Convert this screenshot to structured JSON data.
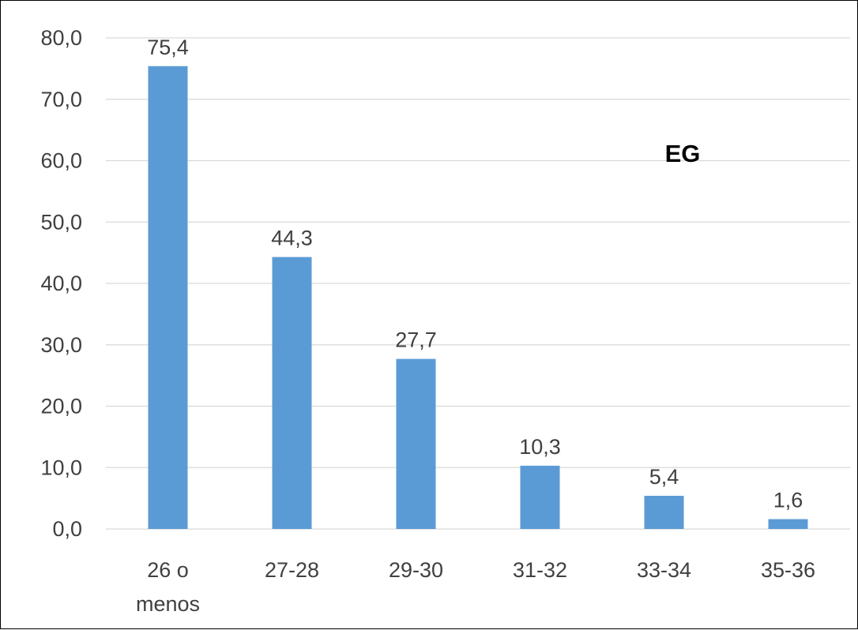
{
  "chart_data": {
    "type": "bar",
    "categories": [
      [
        "26 o",
        "menos"
      ],
      [
        "27-28"
      ],
      [
        "29-30"
      ],
      [
        "31-32"
      ],
      [
        "33-34"
      ],
      [
        "35-36"
      ]
    ],
    "values": [
      75.4,
      44.3,
      27.7,
      10.3,
      5.4,
      1.6
    ],
    "data_labels": [
      "75,4",
      "44,3",
      "27,7",
      "10,3",
      "5,4",
      "1,6"
    ],
    "annotation": "EG",
    "title": "",
    "xlabel": "",
    "ylabel": "",
    "ylim": [
      0,
      80
    ],
    "yticks": [
      0,
      10,
      20,
      30,
      40,
      50,
      60,
      70,
      80
    ],
    "ytick_labels": [
      "0,0",
      "10,0",
      "20,0",
      "30,0",
      "40,0",
      "50,0",
      "60,0",
      "70,0",
      "80,0"
    ],
    "grid": true,
    "legend": "none",
    "colors": {
      "bar": "#5b9bd5"
    }
  }
}
